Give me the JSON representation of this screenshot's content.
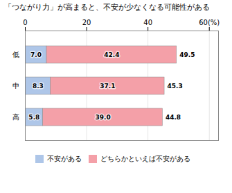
{
  "chart_data": {
    "type": "bar",
    "orientation": "horizontal",
    "stacked": true,
    "title": "「つながり力」が高まると、不安が少なくなる可能性がある",
    "categories": [
      "低",
      "中",
      "高"
    ],
    "series": [
      {
        "name": "不安がある",
        "color": "#aec6e8",
        "values": [
          7.0,
          8.3,
          5.8
        ],
        "value_labels": [
          "7.0",
          "8.3",
          "5.8"
        ]
      },
      {
        "name": "どちらかといえば不安がある",
        "color": "#f4a0a8",
        "values": [
          42.4,
          37.1,
          39.0
        ],
        "value_labels": [
          "42.4",
          "37.1",
          "39.0"
        ]
      }
    ],
    "totals": [
      49.5,
      45.3,
      44.8
    ],
    "data_labels": true,
    "xlim": [
      0,
      63
    ],
    "xticks": [
      0,
      20,
      40,
      {
        "value": 60,
        "label": "60(%)"
      }
    ],
    "grid": true,
    "legend": "bottom"
  }
}
